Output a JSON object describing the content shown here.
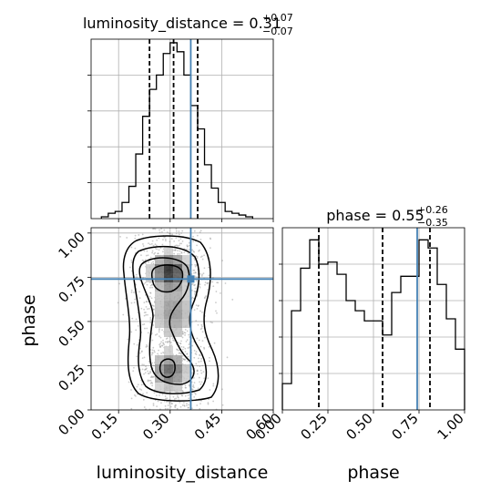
{
  "chart_data": [
    {
      "type": "histogram",
      "panel": "luminosity_distance-marginal",
      "title_text": "luminosity_distance = 0.31",
      "title_sup": "+0.07",
      "title_sub": "−0.07",
      "xlim": [
        0.07,
        0.6
      ],
      "x_ticks": [
        0.15,
        0.3,
        0.45,
        0.6
      ],
      "bin_edges": [
        0.1,
        0.12,
        0.14,
        0.16,
        0.18,
        0.2,
        0.22,
        0.24,
        0.26,
        0.28,
        0.3,
        0.32,
        0.34,
        0.36,
        0.38,
        0.4,
        0.42,
        0.44,
        0.46,
        0.48,
        0.5,
        0.52,
        0.54
      ],
      "counts": [
        1,
        3,
        4,
        9,
        18,
        36,
        57,
        72,
        80,
        92,
        98,
        93,
        80,
        63,
        50,
        30,
        17,
        9,
        4,
        3,
        2,
        1
      ],
      "quantile_lines": [
        0.24,
        0.31,
        0.38
      ],
      "truth": 0.36
    },
    {
      "type": "histogram",
      "panel": "phase-marginal",
      "title_text": "phase = 0.55",
      "title_sup": "+0.26",
      "title_sub": "−0.35",
      "xlim": [
        0.0,
        1.0
      ],
      "x_ticks": [
        0.0,
        0.25,
        0.5,
        0.75,
        1.0
      ],
      "x_tick_labels": [
        "0.00",
        "0.25",
        "0.50",
        "0.75",
        "1.00"
      ],
      "xlabel": "phase",
      "bin_edges": [
        0.0,
        0.05,
        0.1,
        0.15,
        0.2,
        0.25,
        0.3,
        0.35,
        0.4,
        0.45,
        0.5,
        0.55,
        0.6,
        0.65,
        0.7,
        0.75,
        0.8,
        0.85,
        0.9,
        0.95,
        1.0
      ],
      "counts": [
        13,
        49,
        70,
        84,
        72,
        73,
        67,
        54,
        49,
        44,
        44,
        37,
        58,
        66,
        66,
        84,
        80,
        62,
        45,
        30
      ],
      "quantile_lines": [
        0.2,
        0.55,
        0.81
      ],
      "truth": 0.74
    },
    {
      "type": "2d-density",
      "panel": "joint",
      "xlim": [
        0.07,
        0.6
      ],
      "ylim": [
        0.0,
        1.03
      ],
      "x_ticks": [
        0.15,
        0.3,
        0.45,
        0.6
      ],
      "x_tick_labels": [
        "0.15",
        "0.30",
        "0.45",
        "0.60"
      ],
      "y_ticks": [
        0.0,
        0.25,
        0.5,
        0.75,
        1.0
      ],
      "y_tick_labels": [
        "0.00",
        "0.25",
        "0.50",
        "0.75",
        "1.00"
      ],
      "xlabel": "luminosity_distance",
      "ylabel": "phase",
      "truth": {
        "x": 0.36,
        "y": 0.74
      }
    }
  ]
}
